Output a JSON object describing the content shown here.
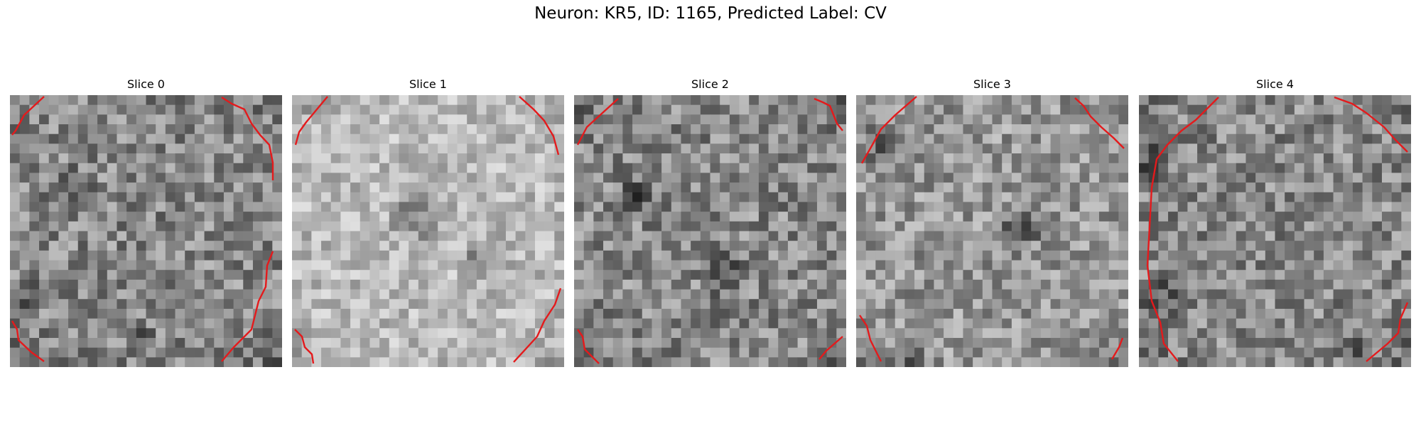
{
  "figure": {
    "title": "Neuron: KR5, ID: 1165, Predicted Label: CV"
  },
  "colors": {
    "contour": "#e41a1c"
  },
  "grid": {
    "cells": 28
  },
  "panels": [
    {
      "title": "Slice 0",
      "tone": "mid",
      "dark_blobs": [
        [
          0.22,
          0.34,
          0.1
        ],
        [
          0.08,
          0.72,
          0.08
        ],
        [
          0.5,
          0.9,
          0.06
        ]
      ]
    },
    {
      "title": "Slice 1",
      "tone": "light",
      "dark_blobs": [
        [
          0.68,
          0.62,
          0.09
        ],
        [
          0.45,
          0.45,
          0.12
        ],
        [
          0.1,
          0.05,
          0.06
        ]
      ]
    },
    {
      "title": "Slice 2",
      "tone": "mid",
      "dark_blobs": [
        [
          0.22,
          0.38,
          0.09
        ],
        [
          0.55,
          0.65,
          0.1
        ],
        [
          0.05,
          0.85,
          0.06
        ]
      ]
    },
    {
      "title": "Slice 3",
      "tone": "midlight",
      "dark_blobs": [
        [
          0.1,
          0.2,
          0.1
        ],
        [
          0.2,
          0.95,
          0.08
        ],
        [
          0.6,
          0.5,
          0.1
        ]
      ]
    },
    {
      "title": "Slice 4",
      "tone": "mid",
      "dark_blobs": [
        [
          0.05,
          0.25,
          0.1
        ],
        [
          0.08,
          0.75,
          0.09
        ],
        [
          0.8,
          0.95,
          0.06
        ]
      ]
    }
  ]
}
